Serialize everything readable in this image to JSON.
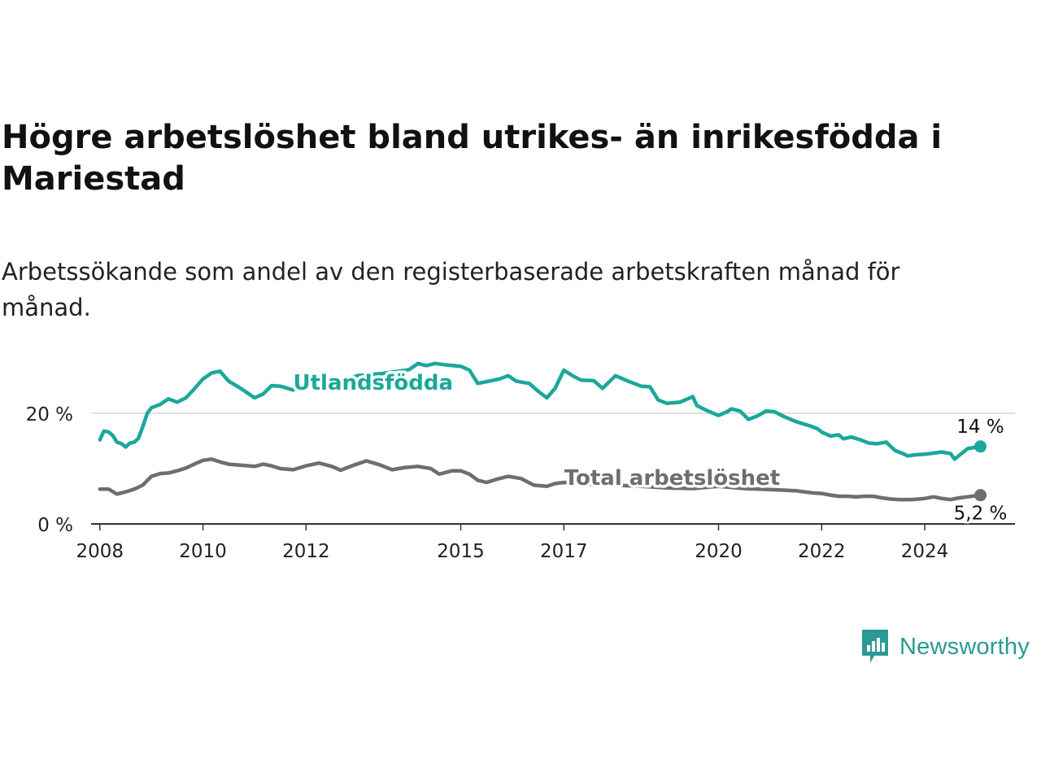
{
  "title": "Högre arbetslöshet bland utrikes- än inrikesfödda i Mariestad",
  "subtitle": "Arbetssökande som andel av den registerbaserade arbetskraften månad för månad.",
  "brand": {
    "name": "Newsworthy",
    "icon": "newsworthy-logo-icon",
    "color": "#2a9a93"
  },
  "chart_data": {
    "type": "line",
    "title": "Högre arbetslöshet bland utrikes- än inrikesfödda i Mariestad",
    "subtitle": "Arbetssökande som andel av den registerbaserade arbetskraften månad för månad.",
    "xlabel": "",
    "ylabel": "",
    "xlim": [
      2007.83,
      2025.75
    ],
    "ylim": [
      0,
      30
    ],
    "x_ticks": [
      2008,
      2010,
      2012,
      2015,
      2017,
      2020,
      2022,
      2024
    ],
    "y_ticks": [
      0,
      20
    ],
    "y_tick_labels": [
      "0 %",
      "20 %"
    ],
    "grid": "horizontal",
    "legend": "inline labels",
    "series": [
      {
        "name": "Utlandsfödda",
        "color": "#1aa89a",
        "end_label": "14 %",
        "points": [
          [
            2008.0,
            15.2
          ],
          [
            2008.08,
            16.8
          ],
          [
            2008.17,
            16.6
          ],
          [
            2008.25,
            16.0
          ],
          [
            2008.33,
            14.8
          ],
          [
            2008.42,
            14.5
          ],
          [
            2008.5,
            13.9
          ],
          [
            2008.58,
            14.6
          ],
          [
            2008.67,
            14.8
          ],
          [
            2008.75,
            15.5
          ],
          [
            2008.83,
            17.5
          ],
          [
            2008.92,
            20.0
          ],
          [
            2009.0,
            21.0
          ],
          [
            2009.17,
            21.6
          ],
          [
            2009.33,
            22.6
          ],
          [
            2009.5,
            22.0
          ],
          [
            2009.67,
            22.8
          ],
          [
            2009.83,
            24.4
          ],
          [
            2010.0,
            26.2
          ],
          [
            2010.17,
            27.3
          ],
          [
            2010.33,
            27.6
          ],
          [
            2010.5,
            25.8
          ],
          [
            2010.75,
            24.4
          ],
          [
            2011.0,
            22.8
          ],
          [
            2011.17,
            23.5
          ],
          [
            2011.33,
            25.0
          ],
          [
            2011.5,
            24.9
          ],
          [
            2011.75,
            24.2
          ],
          [
            2012.0,
            25.5
          ],
          [
            2012.5,
            25.4
          ],
          [
            2013.0,
            26.8
          ],
          [
            2013.5,
            27.2
          ],
          [
            2014.0,
            27.9
          ],
          [
            2014.17,
            29.0
          ],
          [
            2014.33,
            28.6
          ],
          [
            2014.5,
            29.0
          ],
          [
            2014.75,
            28.7
          ],
          [
            2015.0,
            28.5
          ],
          [
            2015.17,
            27.8
          ],
          [
            2015.33,
            25.4
          ],
          [
            2015.5,
            25.7
          ],
          [
            2015.75,
            26.2
          ],
          [
            2015.92,
            26.8
          ],
          [
            2016.08,
            25.8
          ],
          [
            2016.33,
            25.4
          ],
          [
            2016.5,
            24.0
          ],
          [
            2016.67,
            22.8
          ],
          [
            2016.83,
            24.5
          ],
          [
            2017.0,
            27.8
          ],
          [
            2017.17,
            26.8
          ],
          [
            2017.33,
            26.0
          ],
          [
            2017.58,
            25.9
          ],
          [
            2017.75,
            24.5
          ],
          [
            2018.0,
            26.8
          ],
          [
            2018.25,
            25.8
          ],
          [
            2018.5,
            24.9
          ],
          [
            2018.67,
            24.8
          ],
          [
            2018.83,
            22.4
          ],
          [
            2019.0,
            21.8
          ],
          [
            2019.25,
            22.0
          ],
          [
            2019.5,
            23.0
          ],
          [
            2019.58,
            21.4
          ],
          [
            2019.75,
            20.6
          ],
          [
            2020.0,
            19.6
          ],
          [
            2020.17,
            20.3
          ],
          [
            2020.25,
            20.8
          ],
          [
            2020.42,
            20.4
          ],
          [
            2020.58,
            18.9
          ],
          [
            2020.75,
            19.5
          ],
          [
            2020.92,
            20.4
          ],
          [
            2021.08,
            20.3
          ],
          [
            2021.25,
            19.5
          ],
          [
            2021.5,
            18.5
          ],
          [
            2021.75,
            17.8
          ],
          [
            2021.92,
            17.2
          ],
          [
            2022.0,
            16.6
          ],
          [
            2022.17,
            15.9
          ],
          [
            2022.33,
            16.1
          ],
          [
            2022.42,
            15.4
          ],
          [
            2022.58,
            15.7
          ],
          [
            2022.75,
            15.2
          ],
          [
            2022.92,
            14.6
          ],
          [
            2023.08,
            14.5
          ],
          [
            2023.25,
            14.8
          ],
          [
            2023.42,
            13.3
          ],
          [
            2023.58,
            12.7
          ],
          [
            2023.67,
            12.3
          ],
          [
            2023.83,
            12.5
          ],
          [
            2024.0,
            12.6
          ],
          [
            2024.17,
            12.8
          ],
          [
            2024.33,
            13.0
          ],
          [
            2024.5,
            12.7
          ],
          [
            2024.58,
            11.7
          ],
          [
            2024.67,
            12.4
          ],
          [
            2024.83,
            13.6
          ],
          [
            2025.08,
            14.0
          ]
        ]
      },
      {
        "name": "Total arbetslöshet",
        "color": "#6e6e70",
        "end_label": "5,2 %",
        "points": [
          [
            2008.0,
            6.3
          ],
          [
            2008.17,
            6.3
          ],
          [
            2008.33,
            5.4
          ],
          [
            2008.5,
            5.8
          ],
          [
            2008.67,
            6.3
          ],
          [
            2008.83,
            7.0
          ],
          [
            2009.0,
            8.6
          ],
          [
            2009.17,
            9.1
          ],
          [
            2009.33,
            9.2
          ],
          [
            2009.5,
            9.6
          ],
          [
            2009.67,
            10.1
          ],
          [
            2009.83,
            10.8
          ],
          [
            2010.0,
            11.5
          ],
          [
            2010.17,
            11.7
          ],
          [
            2010.33,
            11.2
          ],
          [
            2010.5,
            10.8
          ],
          [
            2010.75,
            10.6
          ],
          [
            2011.0,
            10.4
          ],
          [
            2011.17,
            10.8
          ],
          [
            2011.33,
            10.5
          ],
          [
            2011.5,
            10.0
          ],
          [
            2011.75,
            9.8
          ],
          [
            2012.0,
            10.5
          ],
          [
            2012.25,
            11.0
          ],
          [
            2012.5,
            10.4
          ],
          [
            2012.67,
            9.7
          ],
          [
            2012.92,
            10.6
          ],
          [
            2013.17,
            11.4
          ],
          [
            2013.42,
            10.7
          ],
          [
            2013.67,
            9.8
          ],
          [
            2013.92,
            10.2
          ],
          [
            2014.17,
            10.4
          ],
          [
            2014.42,
            10.0
          ],
          [
            2014.58,
            9.0
          ],
          [
            2014.83,
            9.6
          ],
          [
            2015.0,
            9.6
          ],
          [
            2015.17,
            9.0
          ],
          [
            2015.33,
            7.9
          ],
          [
            2015.5,
            7.5
          ],
          [
            2015.67,
            8.0
          ],
          [
            2015.92,
            8.6
          ],
          [
            2016.17,
            8.2
          ],
          [
            2016.42,
            7.0
          ],
          [
            2016.67,
            6.8
          ],
          [
            2016.83,
            7.3
          ],
          [
            2017.0,
            7.5
          ],
          [
            2017.5,
            7.2
          ],
          [
            2018.0,
            7.0
          ],
          [
            2018.5,
            6.8
          ],
          [
            2019.0,
            6.5
          ],
          [
            2019.5,
            6.4
          ],
          [
            2020.0,
            6.8
          ],
          [
            2020.5,
            6.4
          ],
          [
            2021.0,
            6.2
          ],
          [
            2021.5,
            6.0
          ],
          [
            2021.67,
            5.8
          ],
          [
            2021.83,
            5.6
          ],
          [
            2022.0,
            5.5
          ],
          [
            2022.17,
            5.2
          ],
          [
            2022.33,
            5.0
          ],
          [
            2022.5,
            5.0
          ],
          [
            2022.67,
            4.9
          ],
          [
            2022.83,
            5.0
          ],
          [
            2023.0,
            5.0
          ],
          [
            2023.17,
            4.7
          ],
          [
            2023.33,
            4.5
          ],
          [
            2023.5,
            4.4
          ],
          [
            2023.75,
            4.4
          ],
          [
            2024.0,
            4.6
          ],
          [
            2024.17,
            4.9
          ],
          [
            2024.33,
            4.6
          ],
          [
            2024.5,
            4.4
          ],
          [
            2024.67,
            4.7
          ],
          [
            2024.83,
            4.9
          ],
          [
            2025.08,
            5.2
          ]
        ]
      }
    ]
  }
}
